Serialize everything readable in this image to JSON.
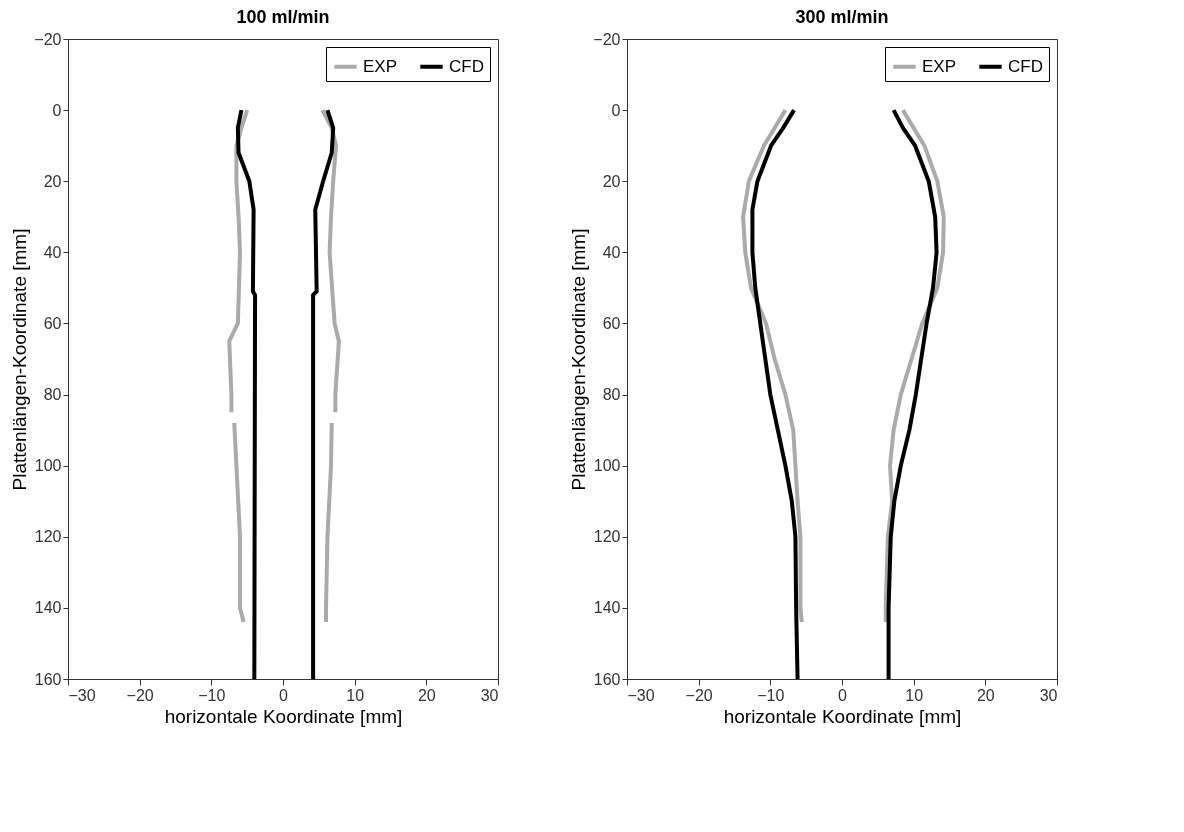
{
  "chart_data": [
    {
      "type": "line",
      "title": "100 ml/min",
      "xlabel": "horizontale Koordinate [mm]",
      "ylabel": "Plattenlängen-Koordinate  [mm]",
      "xlim": [
        -30,
        30
      ],
      "ylim": [
        160,
        -20
      ],
      "xticks": [
        -30,
        -20,
        -10,
        0,
        10,
        20,
        30
      ],
      "yticks": [
        -20,
        0,
        20,
        40,
        60,
        80,
        100,
        120,
        140,
        160
      ],
      "grid": false,
      "legend": "top right",
      "series": [
        {
          "name": "EXP",
          "color": "#aaaaaa",
          "x": [
            -5.0,
            -5.8,
            -6.5,
            -6.5,
            -6.2,
            -6.0,
            -6.3,
            -7.5,
            -7.2,
            -7.2,
            null,
            -6.8,
            -6.5,
            -6.0,
            -6.0,
            -5.5
          ],
          "values": [
            0,
            5,
            10,
            20,
            30,
            40,
            60,
            65,
            80,
            85,
            null,
            88,
            100,
            120,
            140,
            144
          ]
        },
        {
          "color": "#aaaaaa",
          "x": [
            5.5,
            6.8,
            7.4,
            7.0,
            6.7,
            6.5,
            7.2,
            7.8,
            7.3,
            7.3,
            null,
            6.8,
            6.7,
            6.2,
            6.0,
            6.0
          ],
          "values": [
            0,
            5,
            10,
            20,
            30,
            40,
            60,
            65,
            80,
            85,
            null,
            88,
            100,
            120,
            140,
            144
          ]
        },
        {
          "name": "CFD",
          "color": "#000000",
          "x": [
            -5.8,
            -6.3,
            -6.2,
            -4.7,
            -4.1,
            -4.2,
            -3.9,
            -4.0
          ],
          "values": [
            0,
            5,
            12,
            20,
            28,
            51,
            52,
            160
          ]
        },
        {
          "color": "#000000",
          "x": [
            6.2,
            7.0,
            6.8,
            5.6,
            4.5,
            4.7,
            4.2,
            4.2
          ],
          "values": [
            0,
            5,
            12,
            20,
            28,
            51,
            52,
            160
          ]
        }
      ]
    },
    {
      "type": "line",
      "title": "300 ml/min",
      "xlabel": "horizontale Koordinate [mm]",
      "ylabel": "Plattenlängen-Koordinate  [mm]",
      "xlim": [
        -30,
        30
      ],
      "ylim": [
        160,
        -20
      ],
      "xticks": [
        -30,
        -20,
        -10,
        0,
        10,
        20,
        30
      ],
      "yticks": [
        -20,
        0,
        20,
        40,
        60,
        80,
        100,
        120,
        140,
        160
      ],
      "grid": false,
      "legend": "top right",
      "series": [
        {
          "name": "EXP",
          "color": "#aaaaaa",
          "x": [
            -7.9,
            -10.9,
            -13.0,
            -13.8,
            -13.5,
            -12.7,
            -10.6,
            -9.4,
            -7.9,
            -6.8,
            -6.5,
            -6.2,
            -5.8,
            -5.8,
            -5.6
          ],
          "values": [
            0,
            10,
            20,
            30,
            40,
            50,
            60,
            70,
            80,
            90,
            100,
            110,
            120,
            140,
            144
          ]
        },
        {
          "color": "#aaaaaa",
          "x": [
            8.5,
            11.5,
            13.3,
            14.2,
            14.1,
            13.3,
            11.2,
            9.7,
            8.2,
            7.2,
            6.7,
            7.0,
            6.4,
            6.1,
            6.1
          ],
          "values": [
            0,
            10,
            20,
            30,
            40,
            50,
            60,
            70,
            80,
            90,
            100,
            110,
            120,
            140,
            144
          ]
        },
        {
          "name": "CFD",
          "color": "#000000",
          "x": [
            -6.7,
            -8.2,
            -9.9,
            -11.8,
            -12.5,
            -12.5,
            -12.1,
            -11.4,
            -10.0,
            -7.9,
            -7.0,
            -6.5,
            -6.4,
            -6.2
          ],
          "values": [
            0,
            5,
            10,
            20,
            28,
            40,
            50,
            60,
            80,
            100,
            110,
            120,
            140,
            160
          ]
        },
        {
          "color": "#000000",
          "x": [
            7.2,
            8.5,
            10.2,
            12.1,
            13.0,
            13.2,
            12.7,
            11.8,
            10.3,
            9.4,
            8.2,
            7.3,
            6.8,
            6.5,
            6.5
          ],
          "values": [
            0,
            5,
            10,
            20,
            30,
            40,
            50,
            60,
            80,
            90,
            100,
            110,
            120,
            140,
            160
          ]
        }
      ]
    }
  ]
}
